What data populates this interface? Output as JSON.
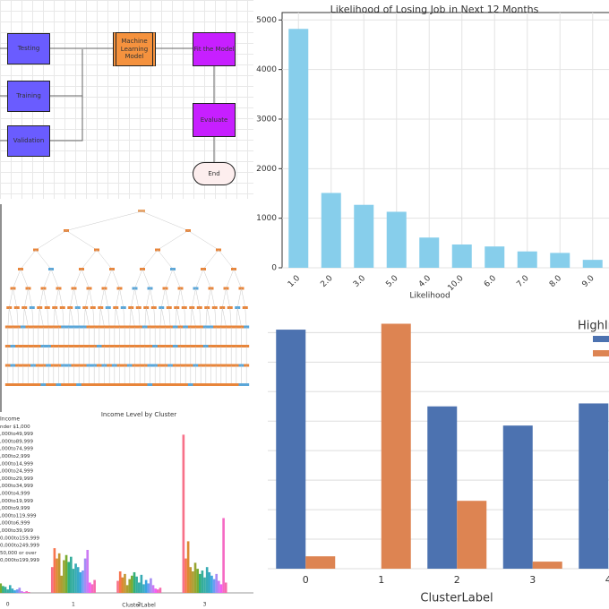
{
  "diagram": {
    "nodes": [
      {
        "label": "Testing"
      },
      {
        "label": "Training"
      },
      {
        "label": "Validation"
      },
      {
        "label": "Machine Learning Model"
      },
      {
        "label": "Fit the Model"
      },
      {
        "label": "Evaluate"
      },
      {
        "label": "End"
      }
    ]
  },
  "chart_data": [
    {
      "type": "bar",
      "title": "Likelihood of Losing Job in Next 12 Months",
      "x_label": "Likelihood",
      "categories": [
        "1.0",
        "2.0",
        "3.0",
        "5.0",
        "4.0",
        "10.0",
        "6.0",
        "7.0",
        "8.0",
        "9.0"
      ],
      "values": [
        4820,
        1510,
        1270,
        1130,
        610,
        470,
        430,
        330,
        300,
        160
      ],
      "color": "#87ceeb",
      "ylim": [
        0,
        5150
      ],
      "yticks": [
        0,
        1000,
        2000,
        3000,
        4000,
        5000
      ],
      "grid": true
    },
    {
      "type": "grouped_bar",
      "title": "Income Level by Cluster",
      "x_label": "ClusterLabel",
      "legend_title": "Income",
      "categories": [
        "0",
        "1",
        "2",
        "3"
      ],
      "ylim": [
        0,
        200
      ],
      "grid": false,
      "series": [
        {
          "name": "nder $1,000",
          "color": "#f77189",
          "values": [
            6,
            30,
            14,
            184
          ]
        },
        {
          "name": ",000to49,999",
          "color": "#f7754f",
          "values": [
            12,
            52,
            25,
            40
          ]
        },
        {
          "name": ",000to89,999",
          "color": "#dc8932",
          "values": [
            4,
            40,
            18,
            60
          ]
        },
        {
          "name": ",000to74,999",
          "color": "#c39532",
          "values": [
            9,
            46,
            22,
            30
          ]
        },
        {
          "name": ",000to2,999",
          "color": "#ae9d31",
          "values": [
            3,
            20,
            9,
            25
          ]
        },
        {
          "name": ",000to14,999",
          "color": "#97a431",
          "values": [
            10,
            38,
            16,
            35
          ]
        },
        {
          "name": ",000to24,999",
          "color": "#77ab31",
          "values": [
            11,
            44,
            20,
            28
          ]
        },
        {
          "name": ",000to29,999",
          "color": "#33b07a",
          "values": [
            8,
            36,
            24,
            22
          ]
        },
        {
          "name": ",000to34,999",
          "color": "#35ad9c",
          "values": [
            7,
            42,
            19,
            26
          ]
        },
        {
          "name": ",000to4,999",
          "color": "#36ada4",
          "values": [
            4,
            28,
            12,
            18
          ]
        },
        {
          "name": ",000to19,999",
          "color": "#37abb4",
          "values": [
            9,
            34,
            21,
            30
          ]
        },
        {
          "name": ",000to9,999",
          "color": "#38a9c5",
          "values": [
            5,
            30,
            10,
            24
          ]
        },
        {
          "name": ",000to119,999",
          "color": "#3aa5df",
          "values": [
            3,
            24,
            15,
            20
          ]
        },
        {
          "name": ",000to6,999",
          "color": "#6e9bf4",
          "values": [
            4,
            26,
            11,
            16
          ]
        },
        {
          "name": ",000to39,999",
          "color": "#a48cf4",
          "values": [
            6,
            40,
            17,
            22
          ]
        },
        {
          "name": "0,000to159,999",
          "color": "#cc7af4",
          "values": [
            2,
            50,
            9,
            14
          ]
        },
        {
          "name": "0,000to249,999",
          "color": "#f45cf2",
          "values": [
            1,
            12,
            5,
            10
          ]
        },
        {
          "name": "50,000 or over",
          "color": "#f569c3",
          "values": [
            2,
            10,
            4,
            87
          ]
        },
        {
          "name": "0,000to199,999",
          "color": "#f66bad",
          "values": [
            1,
            15,
            6,
            12
          ]
        }
      ]
    },
    {
      "type": "grouped_bar",
      "x_label": "ClusterLabel",
      "legend_title": "HighIn",
      "categories": [
        "0",
        "1",
        "2",
        "3",
        "4"
      ],
      "ylim": [
        0,
        8.8
      ],
      "yticks": [
        0,
        1,
        2,
        3,
        4,
        5,
        6,
        7,
        8
      ],
      "grid": true,
      "series": [
        {
          "color": "#4c72b0",
          "values": [
            8.1,
            0,
            5.5,
            4.85,
            5.6
          ]
        },
        {
          "color": "#dd8452",
          "values": [
            0.42,
            8.3,
            2.3,
            0.24,
            null
          ]
        }
      ]
    }
  ]
}
